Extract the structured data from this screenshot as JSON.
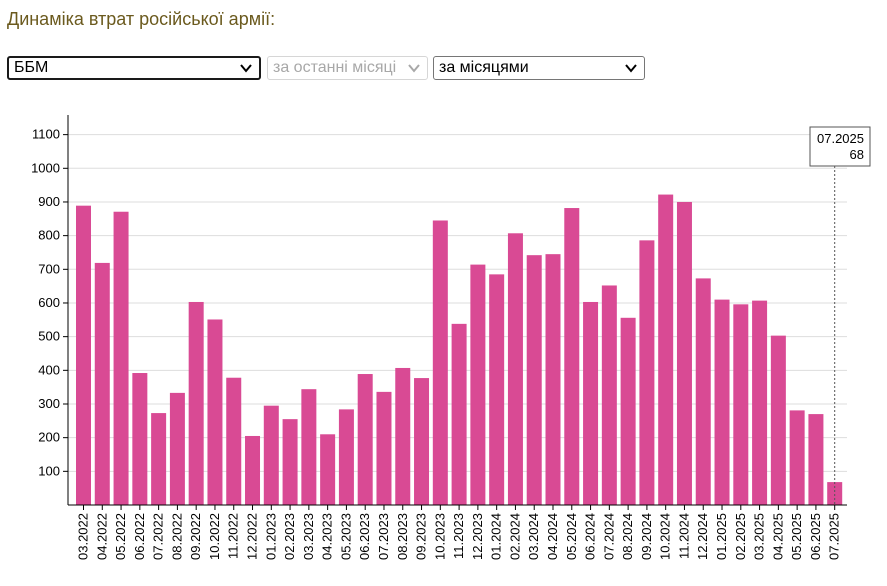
{
  "page": {
    "title": "Динаміка втрат російської армії:"
  },
  "controls": {
    "metric": "ББМ",
    "period": "за останні місяці",
    "grouping": "за місяцями"
  },
  "colors": {
    "bar": "#d94a94",
    "title": "#6b5a1e",
    "grid": "#dddddd",
    "axis": "#000000"
  },
  "tooltip": {
    "label": "07.2025",
    "value": "68"
  },
  "chart_data": {
    "type": "bar",
    "title": "",
    "xlabel": "",
    "ylabel": "",
    "ylim": [
      0,
      1150
    ],
    "yticks": [
      100,
      200,
      300,
      400,
      500,
      600,
      700,
      800,
      900,
      1000,
      1100
    ],
    "grid": true,
    "categories": [
      "03.2022",
      "04.2022",
      "05.2022",
      "06.2022",
      "07.2022",
      "08.2022",
      "09.2022",
      "10.2022",
      "11.2022",
      "12.2022",
      "01.2023",
      "02.2023",
      "03.2023",
      "04.2023",
      "05.2023",
      "06.2023",
      "07.2023",
      "08.2023",
      "09.2023",
      "10.2023",
      "11.2023",
      "12.2023",
      "01.2024",
      "02.2024",
      "03.2024",
      "04.2024",
      "05.2024",
      "06.2024",
      "07.2024",
      "08.2024",
      "09.2024",
      "10.2024",
      "11.2024",
      "12.2024",
      "01.2025",
      "02.2025",
      "03.2025",
      "04.2025",
      "05.2025",
      "06.2025",
      "07.2025"
    ],
    "values": [
      889,
      719,
      871,
      392,
      273,
      333,
      603,
      551,
      378,
      205,
      295,
      255,
      344,
      210,
      284,
      389,
      336,
      407,
      377,
      845,
      538,
      714,
      685,
      807,
      742,
      745,
      882,
      603,
      652,
      556,
      786,
      922,
      900,
      673,
      610,
      596,
      607,
      503,
      281,
      270,
      68
    ]
  }
}
